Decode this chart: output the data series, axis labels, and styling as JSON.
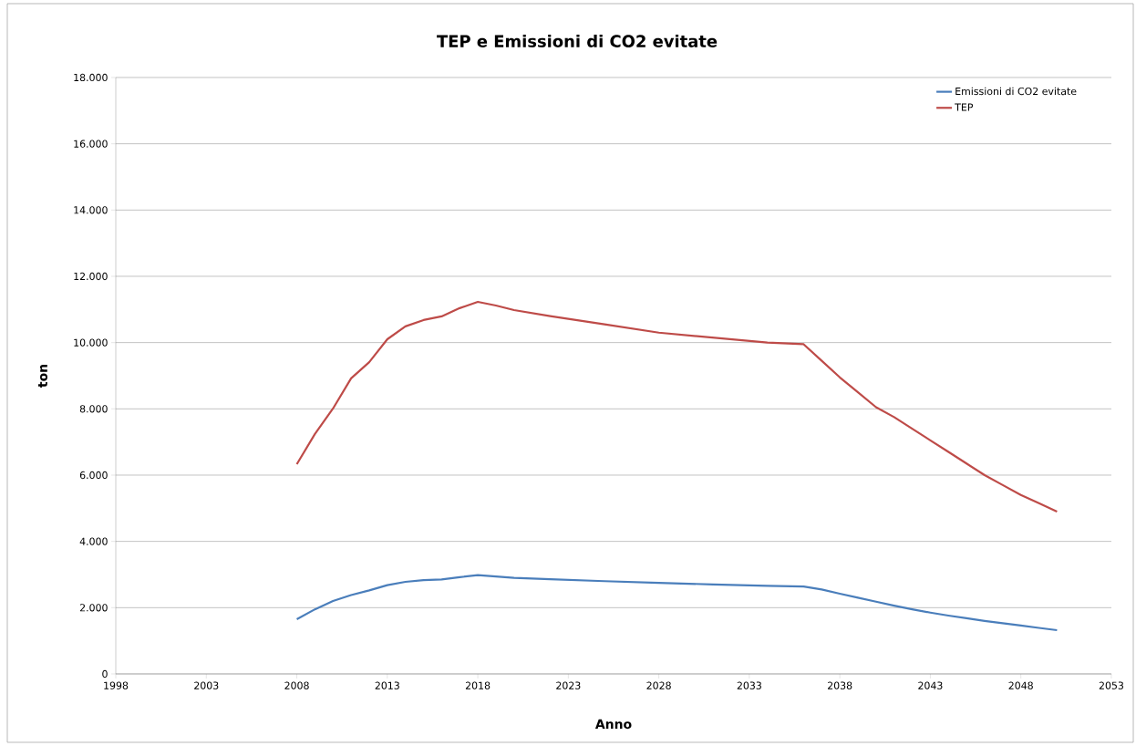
{
  "chart_data": {
    "type": "line",
    "title": "TEP e Emissioni di CO2 evitate",
    "xlabel": "Anno",
    "ylabel": "ton",
    "x": [
      2008,
      2009,
      2010,
      2011,
      2012,
      2013,
      2014,
      2015,
      2016,
      2017,
      2018,
      2019,
      2020,
      2022,
      2025,
      2028,
      2031,
      2034,
      2036,
      2037,
      2038,
      2039,
      2040,
      2041,
      2042,
      2043,
      2044,
      2045,
      2046,
      2047,
      2048,
      2049,
      2050
    ],
    "series": [
      {
        "name": "Emissioni di CO2 evitate",
        "color": "#4a7ebb",
        "values": [
          1650,
          1950,
          2200,
          2380,
          2520,
          2680,
          2780,
          2830,
          2850,
          2920,
          2980,
          2940,
          2900,
          2860,
          2800,
          2750,
          2700,
          2660,
          2640,
          2550,
          2420,
          2300,
          2180,
          2060,
          1950,
          1850,
          1760,
          1680,
          1600,
          1530,
          1460,
          1390,
          1320
        ]
      },
      {
        "name": "TEP",
        "color": "#be4b48",
        "values": [
          6330,
          7240,
          8010,
          8920,
          9410,
          10100,
          10490,
          10680,
          10790,
          11040,
          11230,
          11120,
          10980,
          10800,
          10550,
          10300,
          10150,
          10000,
          9950,
          9450,
          8950,
          8500,
          8050,
          7750,
          7400,
          7050,
          6700,
          6350,
          6000,
          5700,
          5400,
          5150,
          4900
        ]
      }
    ],
    "xlim": [
      1998,
      2053
    ],
    "xticks": [
      1998,
      2003,
      2008,
      2013,
      2018,
      2023,
      2028,
      2033,
      2038,
      2043,
      2048,
      2053
    ],
    "ylim": [
      0,
      18000
    ],
    "yticks": [
      0,
      {
        "value": 2000,
        "label": "2.000"
      },
      {
        "value": 4000,
        "label": "4.000"
      },
      {
        "value": 6000,
        "label": "6.000"
      },
      {
        "value": 8000,
        "label": "8.000"
      },
      {
        "value": 10000,
        "label": "10.000"
      },
      {
        "value": 12000,
        "label": "12.000"
      },
      {
        "value": 14000,
        "label": "14.000"
      },
      {
        "value": 16000,
        "label": "16.000"
      },
      {
        "value": 18000,
        "label": "18.000"
      }
    ],
    "grid": "y",
    "legend": "top right"
  }
}
